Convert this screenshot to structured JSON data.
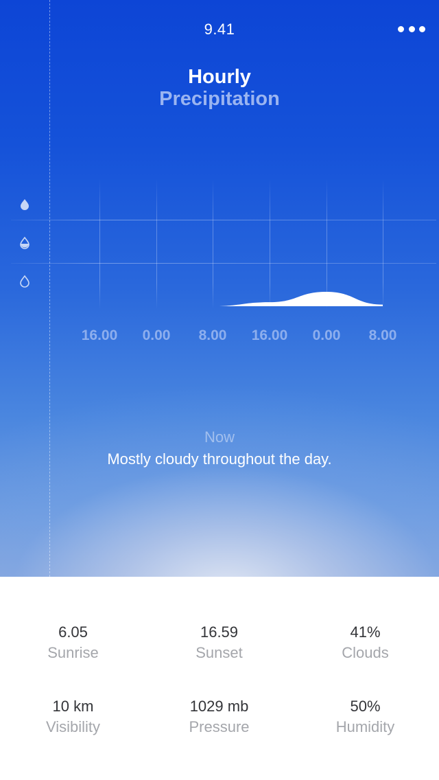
{
  "status_bar": {
    "time": "9.41"
  },
  "header": {
    "title": "Hourly",
    "subtitle": "Precipitation"
  },
  "chart_data": {
    "type": "area",
    "x": [
      "16.00",
      "0.00",
      "8.00",
      "16.00",
      "0.00",
      "8.00"
    ],
    "series": [
      {
        "values": [
          0,
          0,
          0,
          0.25,
          0.9,
          0.1
        ]
      }
    ],
    "y_levels": [
      "heavy",
      "moderate",
      "light"
    ],
    "grid": true
  },
  "forecast": {
    "now_label": "Now",
    "description": "Mostly cloudy throughout the day."
  },
  "stats": [
    {
      "value": "6.05",
      "label": "Sunrise"
    },
    {
      "value": "16.59",
      "label": "Sunset"
    },
    {
      "value": "41%",
      "label": "Clouds"
    },
    {
      "value": "10 km",
      "label": "Visibility"
    },
    {
      "value": "1029 mb",
      "label": "Pressure"
    },
    {
      "value": "50%",
      "label": "Humidity"
    }
  ],
  "icons": {
    "more": "more-dots-icon",
    "drop_full": "drop-full-icon",
    "drop_half": "drop-half-icon",
    "drop_empty": "drop-empty-icon"
  },
  "colors": {
    "hero_top": "#0d45d6",
    "hero_bottom": "#8aa8de",
    "value_text": "#333438",
    "label_text": "#a4a6ab"
  }
}
